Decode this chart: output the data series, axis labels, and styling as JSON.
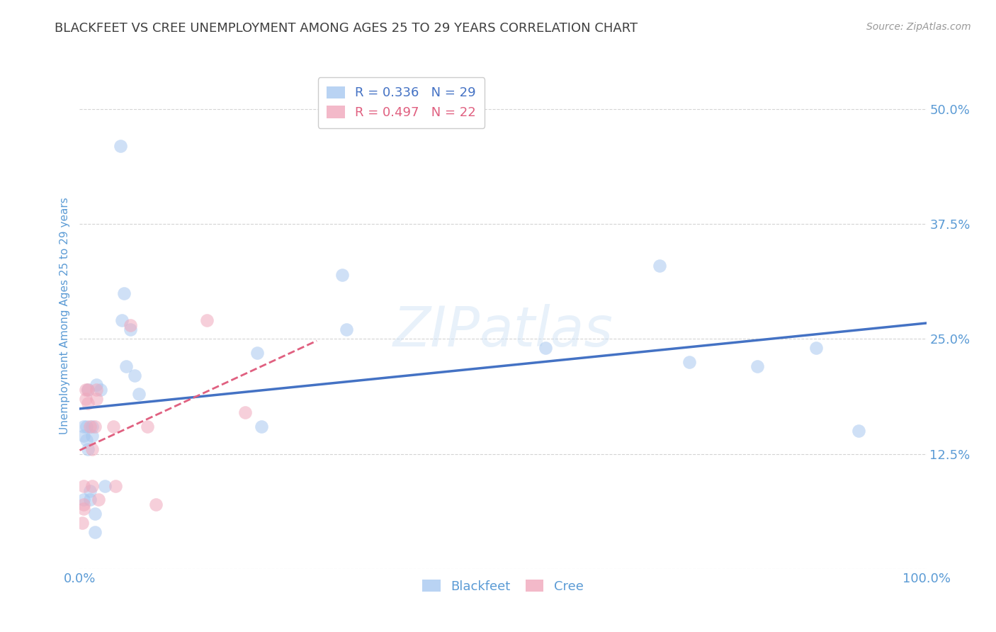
{
  "title": "BLACKFEET VS CREE UNEMPLOYMENT AMONG AGES 25 TO 29 YEARS CORRELATION CHART",
  "source": "Source: ZipAtlas.com",
  "ylabel": "Unemployment Among Ages 25 to 29 years",
  "ytick_values": [
    0.0,
    0.125,
    0.25,
    0.375,
    0.5
  ],
  "ytick_labels": [
    "",
    "12.5%",
    "25.0%",
    "37.5%",
    "50.0%"
  ],
  "xlim": [
    0.0,
    1.0
  ],
  "ylim": [
    0.0,
    0.55
  ],
  "blackfeet_color": "#a8c8f0",
  "cree_color": "#f0a8bc",
  "blackfeet_trend_color": "#4472c4",
  "cree_trend_color": "#e06080",
  "watermark": "ZIPatlas",
  "blackfeet_x": [
    0.005,
    0.005,
    0.005,
    0.008,
    0.008,
    0.01,
    0.01,
    0.012,
    0.012,
    0.015,
    0.015,
    0.018,
    0.018,
    0.02,
    0.025,
    0.03,
    0.048,
    0.05,
    0.052,
    0.055,
    0.06,
    0.065,
    0.07,
    0.21,
    0.215,
    0.31,
    0.315,
    0.55,
    0.685,
    0.72,
    0.8,
    0.87,
    0.92
  ],
  "blackfeet_y": [
    0.155,
    0.145,
    0.075,
    0.155,
    0.14,
    0.195,
    0.13,
    0.085,
    0.075,
    0.155,
    0.145,
    0.06,
    0.04,
    0.2,
    0.195,
    0.09,
    0.46,
    0.27,
    0.3,
    0.22,
    0.26,
    0.21,
    0.19,
    0.235,
    0.155,
    0.32,
    0.26,
    0.24,
    0.33,
    0.225,
    0.22,
    0.24,
    0.15
  ],
  "cree_x": [
    0.003,
    0.005,
    0.005,
    0.005,
    0.007,
    0.007,
    0.01,
    0.01,
    0.012,
    0.015,
    0.015,
    0.018,
    0.02,
    0.02,
    0.022,
    0.04,
    0.042,
    0.06,
    0.08,
    0.09,
    0.15,
    0.195
  ],
  "cree_y": [
    0.05,
    0.09,
    0.07,
    0.065,
    0.195,
    0.185,
    0.195,
    0.18,
    0.155,
    0.13,
    0.09,
    0.155,
    0.195,
    0.185,
    0.075,
    0.155,
    0.09,
    0.265,
    0.155,
    0.07,
    0.27,
    0.17
  ],
  "background_color": "#ffffff",
  "grid_color": "#d0d0d0",
  "title_color": "#404040",
  "axis_label_color": "#5b9bd5",
  "marker_size": 180,
  "marker_alpha": 0.55,
  "blackfeet_trend_xlim": [
    0.0,
    1.0
  ],
  "cree_trend_xlim": [
    0.0,
    0.28
  ]
}
